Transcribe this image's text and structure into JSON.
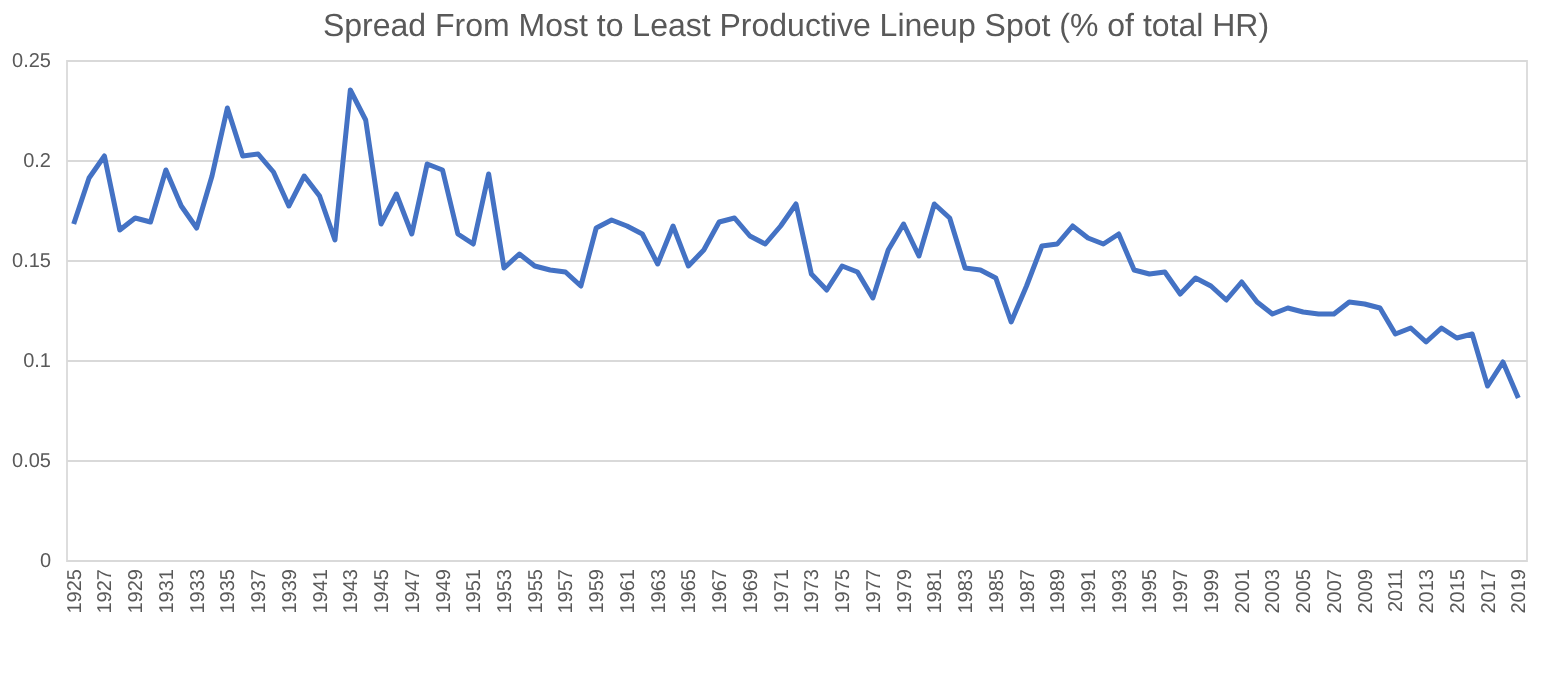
{
  "chart_data": {
    "type": "line",
    "title": "Spread From Most to Least Productive Lineup Spot (% of total HR)",
    "categories": [
      "1925",
      null,
      "1927",
      null,
      "1929",
      null,
      "1931",
      null,
      "1933",
      null,
      "1935",
      null,
      "1937",
      null,
      "1939",
      null,
      "1941",
      null,
      "1943",
      null,
      "1945",
      null,
      "1947",
      null,
      "1949",
      null,
      "1951",
      null,
      "1953",
      null,
      "1955",
      null,
      "1957",
      null,
      "1959",
      null,
      "1961",
      null,
      "1963",
      null,
      "1965",
      null,
      "1967",
      null,
      "1969",
      null,
      "1971",
      null,
      "1973",
      null,
      "1975",
      null,
      "1977",
      null,
      "1979",
      null,
      "1981",
      null,
      "1983",
      null,
      "1985",
      null,
      "1987",
      null,
      "1989",
      null,
      "1991",
      null,
      "1993",
      null,
      "1995",
      null,
      "1997",
      null,
      "1999",
      null,
      "2001",
      null,
      "2003",
      null,
      "2005",
      null,
      "2007",
      null,
      "2009",
      null,
      "2011",
      null,
      "2013",
      null,
      "2015",
      null,
      "2017",
      null,
      "2019"
    ],
    "series": [
      {
        "color": "#4472c4",
        "values": [
          0.168,
          0.191,
          0.202,
          0.165,
          0.171,
          0.169,
          0.195,
          0.177,
          0.166,
          0.192,
          0.226,
          0.202,
          0.203,
          0.194,
          0.177,
          0.192,
          0.182,
          0.16,
          0.235,
          0.22,
          0.168,
          0.183,
          0.163,
          0.198,
          0.195,
          0.163,
          0.158,
          0.193,
          0.146,
          0.153,
          0.147,
          0.145,
          0.144,
          0.137,
          0.166,
          0.17,
          0.167,
          0.163,
          0.148,
          0.167,
          0.147,
          0.155,
          0.169,
          0.171,
          0.162,
          0.158,
          0.167,
          0.178,
          0.143,
          0.135,
          0.147,
          0.144,
          0.131,
          0.155,
          0.168,
          0.152,
          0.178,
          0.171,
          0.146,
          0.145,
          0.141,
          0.119,
          0.137,
          0.157,
          0.158,
          0.167,
          0.161,
          0.158,
          0.163,
          0.145,
          0.143,
          0.144,
          0.133,
          0.141,
          0.137,
          0.13,
          0.139,
          0.129,
          0.123,
          0.126,
          0.124,
          0.123,
          0.123,
          0.129,
          0.128,
          0.126,
          0.113,
          0.116,
          0.109,
          0.116,
          0.111,
          0.113,
          0.087,
          0.099,
          0.081
        ]
      }
    ],
    "ylim": [
      0,
      0.25
    ],
    "yticks": [
      0,
      0.05,
      0.1,
      0.15,
      0.2,
      0.25
    ],
    "grid": "y",
    "marker": "none",
    "line_style": "solid"
  }
}
